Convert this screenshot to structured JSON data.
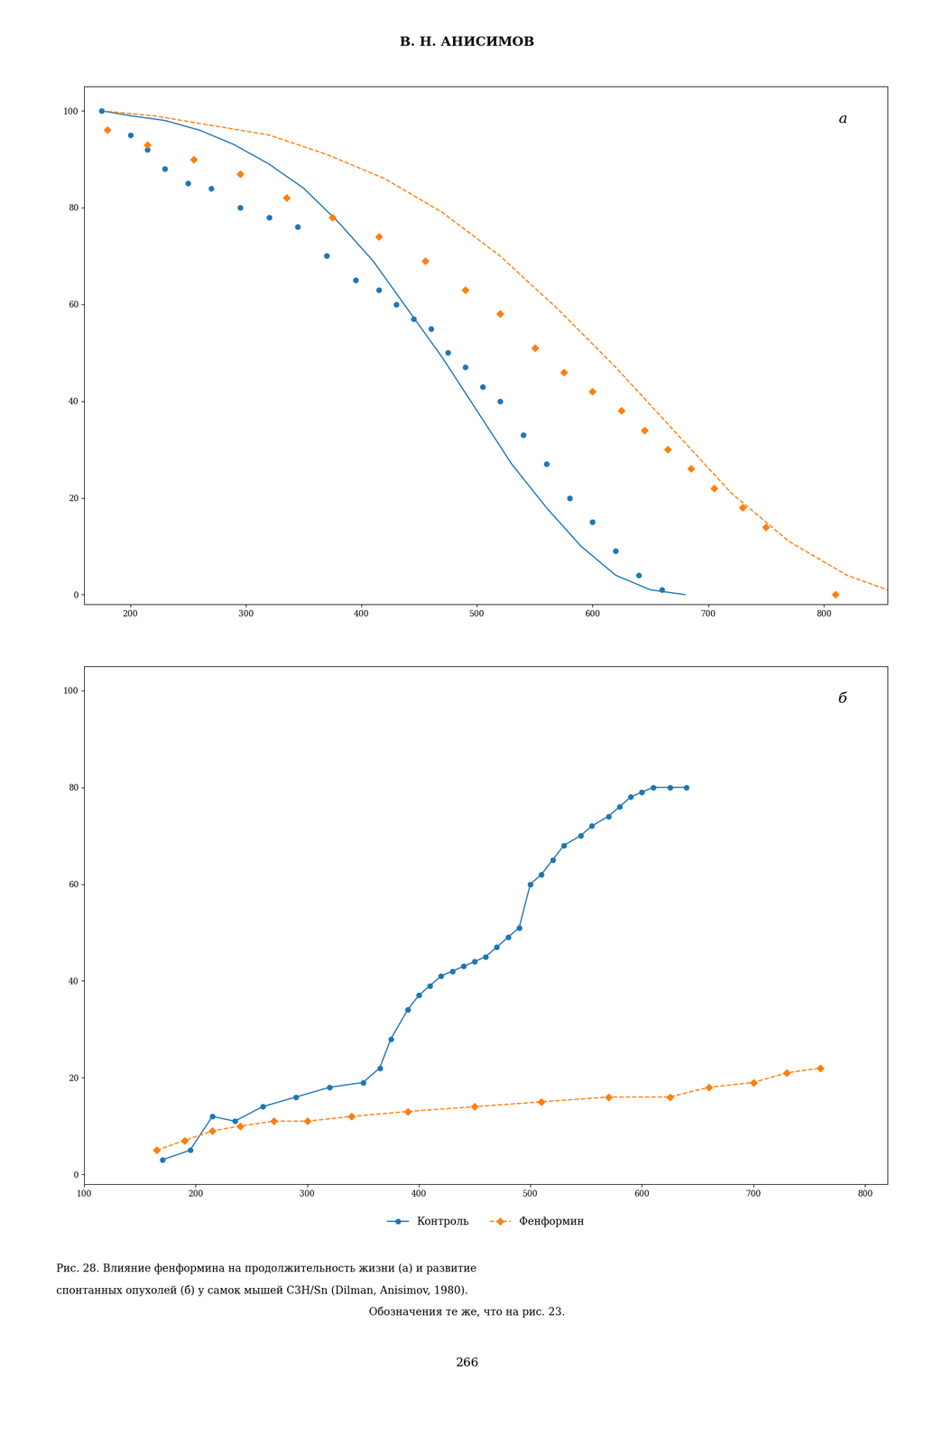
{
  "title": "В. Н. АНИСИМОВ",
  "annotations": [
    "Рис. 28. Влияние фенформина на продолжительность жизни (а) и развитие",
    "спонтанных опухолей (б) у самок мышей С3Н/Sn (Dilman, Anisimov, 1980).",
    "Обозначения те же, что на рис. 23.",
    "266"
  ],
  "chart_data": [
    {
      "type": "line",
      "annotations": [
        "а"
      ],
      "xlim": [
        160,
        855
      ],
      "ylim": [
        -2,
        105
      ],
      "xticks": [
        200,
        300,
        400,
        500,
        600,
        700,
        800
      ],
      "yticks": [
        0,
        20,
        40,
        60,
        80,
        100
      ],
      "series": [
        {
          "name": "Контроль",
          "type": "line",
          "line_style": "solid",
          "x": [
            175,
            200,
            230,
            260,
            290,
            320,
            350,
            380,
            410,
            440,
            470,
            500,
            530,
            560,
            590,
            620,
            650,
            680
          ],
          "values": [
            100,
            99,
            98,
            96,
            93,
            89,
            84,
            77,
            69,
            59,
            49,
            38,
            27,
            18,
            10,
            4,
            1,
            0
          ]
        },
        {
          "name": "Контроль",
          "type": "scatter",
          "marker": "circle",
          "x": [
            175,
            200,
            215,
            230,
            250,
            270,
            295,
            320,
            345,
            370,
            395,
            415,
            430,
            445,
            460,
            475,
            490,
            505,
            520,
            540,
            560,
            580,
            600,
            620,
            640,
            660
          ],
          "values": [
            100,
            95,
            92,
            88,
            85,
            84,
            80,
            78,
            76,
            70,
            65,
            63,
            60,
            57,
            55,
            50,
            47,
            43,
            40,
            33,
            27,
            20,
            15,
            9,
            4,
            1
          ]
        },
        {
          "name": "Фенформин",
          "type": "line",
          "line_style": "dashed",
          "x": [
            175,
            220,
            270,
            320,
            370,
            420,
            470,
            520,
            570,
            620,
            670,
            720,
            770,
            820,
            855
          ],
          "values": [
            100,
            99,
            97,
            95,
            91,
            86,
            79,
            70,
            59,
            47,
            34,
            21,
            11,
            4,
            1
          ]
        },
        {
          "name": "Фенформин",
          "type": "scatter",
          "marker": "diamond",
          "x": [
            180,
            215,
            255,
            295,
            335,
            375,
            415,
            455,
            490,
            520,
            550,
            575,
            600,
            625,
            645,
            665,
            685,
            705,
            730,
            750,
            810
          ],
          "values": [
            96,
            93,
            90,
            87,
            82,
            78,
            74,
            69,
            63,
            58,
            51,
            46,
            42,
            38,
            34,
            30,
            26,
            22,
            18,
            14,
            0
          ]
        }
      ]
    },
    {
      "type": "line",
      "annotations": [
        "б"
      ],
      "legend": "below",
      "xlim": [
        100,
        820
      ],
      "ylim": [
        -2,
        105
      ],
      "xticks": [
        100,
        200,
        300,
        400,
        500,
        600,
        700,
        800
      ],
      "yticks": [
        0,
        20,
        40,
        60,
        80,
        100
      ],
      "series": [
        {
          "name": "Контроль",
          "type": "line",
          "line_style": "solid",
          "marker": "circle",
          "x": [
            170,
            195,
            215,
            235,
            260,
            290,
            320,
            350,
            365,
            375,
            390,
            400,
            410,
            420,
            430,
            440,
            450,
            460,
            470,
            480,
            490,
            500,
            510,
            520,
            530,
            545,
            555,
            570,
            580,
            590,
            600,
            610,
            625,
            640
          ],
          "values": [
            3,
            5,
            12,
            11,
            14,
            16,
            18,
            19,
            22,
            28,
            34,
            37,
            39,
            41,
            42,
            43,
            44,
            45,
            47,
            49,
            51,
            60,
            62,
            65,
            68,
            70,
            72,
            74,
            76,
            78,
            79,
            80,
            80,
            80
          ]
        },
        {
          "name": "Фенформин",
          "type": "line",
          "line_style": "dashed",
          "marker": "diamond",
          "x": [
            165,
            190,
            215,
            240,
            270,
            300,
            340,
            390,
            450,
            510,
            570,
            625,
            660,
            700,
            730,
            760
          ],
          "values": [
            5,
            7,
            9,
            10,
            11,
            11,
            12,
            13,
            14,
            15,
            16,
            16,
            18,
            19,
            21,
            22
          ]
        }
      ]
    }
  ]
}
